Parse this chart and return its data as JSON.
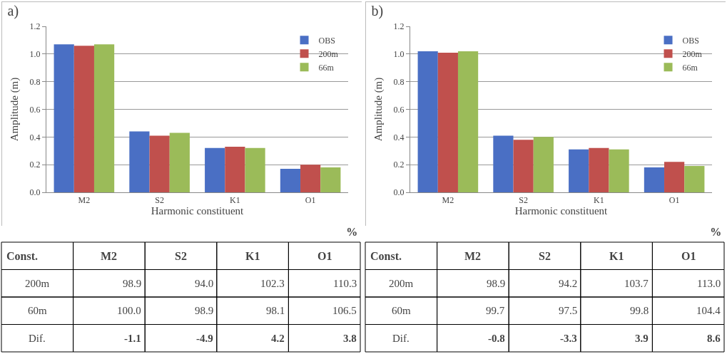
{
  "chart_data": [
    {
      "type": "bar",
      "title": "a)",
      "xlabel": "Harmonic constituent",
      "ylabel": "Amplitude (m)",
      "categories": [
        "M2",
        "S2",
        "K1",
        "O1"
      ],
      "series": [
        {
          "name": "OBS",
          "color": "#4a6fc4",
          "values": [
            1.07,
            0.44,
            0.32,
            0.17
          ]
        },
        {
          "name": "200m",
          "color": "#c0504d",
          "values": [
            1.06,
            0.41,
            0.33,
            0.2
          ]
        },
        {
          "name": "66m",
          "color": "#9bbb59",
          "values": [
            1.07,
            0.43,
            0.32,
            0.18
          ]
        }
      ],
      "ylim": [
        0,
        1.2
      ],
      "yticks": [
        {
          "value": 0,
          "label": "0.0"
        },
        {
          "value": 0.2,
          "label": "0.2"
        },
        {
          "value": 0.4,
          "label": "0.4"
        },
        {
          "value": 0.6,
          "label": "0.6"
        },
        {
          "value": 0.8,
          "label": "0.8"
        },
        {
          "value": 1,
          "label": "1.0"
        },
        {
          "value": 1.2,
          "label": "1.2"
        }
      ],
      "grid": "y",
      "legend": "top right"
    },
    {
      "type": "bar",
      "title": "b)",
      "xlabel": "Harmonic constituent",
      "ylabel": "Amplitude (m)",
      "categories": [
        "M2",
        "S2",
        "K1",
        "O1"
      ],
      "series": [
        {
          "name": "OBS",
          "color": "#4a6fc4",
          "values": [
            1.02,
            0.41,
            0.31,
            0.18
          ]
        },
        {
          "name": "200m",
          "color": "#c0504d",
          "values": [
            1.01,
            0.38,
            0.32,
            0.22
          ]
        },
        {
          "name": "66m",
          "color": "#9bbb59",
          "values": [
            1.02,
            0.4,
            0.31,
            0.19
          ]
        }
      ],
      "ylim": [
        0,
        1.2
      ],
      "yticks": [
        {
          "value": 0,
          "label": "0.0"
        },
        {
          "value": 0.2,
          "label": "0.2"
        },
        {
          "value": 0.4,
          "label": "0.4"
        },
        {
          "value": 0.6,
          "label": "0.6"
        },
        {
          "value": 0.8,
          "label": "0.8"
        },
        {
          "value": 1,
          "label": "1.0"
        },
        {
          "value": 1.2,
          "label": "1.2"
        }
      ],
      "grid": "y",
      "legend": "top right"
    },
    {
      "type": "heatmap",
      "title": "%",
      "ylabel": "Const.",
      "categories": [
        "M2",
        "S2",
        "K1",
        "O1"
      ],
      "y_categories": [
        "200m",
        "60m",
        "Dif."
      ],
      "cells": [
        [
          98.9,
          94.0,
          102.3,
          110.3
        ],
        [
          100.0,
          98.9,
          98.1,
          106.5
        ],
        [
          -1.1,
          -4.9,
          4.2,
          3.8
        ]
      ],
      "cell_labels": [
        [
          "98.9",
          "94.0",
          "102.3",
          "110.3"
        ],
        [
          "100.0",
          "98.9",
          "98.1",
          "106.5"
        ],
        [
          "-1.1",
          "-4.9",
          "4.2",
          "3.8"
        ]
      ]
    },
    {
      "type": "heatmap",
      "title": "%",
      "ylabel": "Const.",
      "categories": [
        "M2",
        "S2",
        "K1",
        "O1"
      ],
      "y_categories": [
        "200m",
        "60m",
        "Dif."
      ],
      "cells": [
        [
          98.9,
          94.2,
          103.7,
          113.0
        ],
        [
          99.7,
          97.5,
          99.8,
          104.4
        ],
        [
          -0.8,
          -3.3,
          3.9,
          8.6
        ]
      ],
      "cell_labels": [
        [
          "98.9",
          "94.2",
          "103.7",
          "113.0"
        ],
        [
          "99.7",
          "97.5",
          "99.8",
          "104.4"
        ],
        [
          "-0.8",
          "-3.3",
          "3.9",
          "8.6"
        ]
      ]
    }
  ]
}
